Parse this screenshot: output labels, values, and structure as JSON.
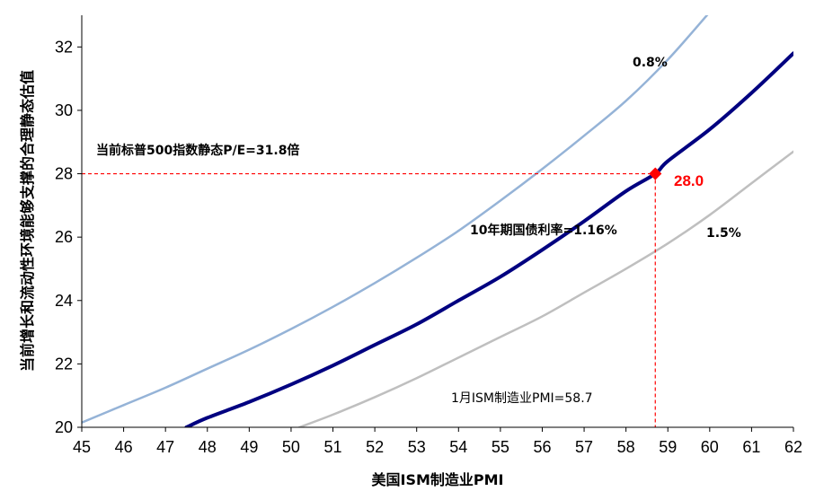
{
  "chart_data": {
    "type": "line",
    "title": "",
    "xlabel": "美国ISM制造业PMI",
    "ylabel": "当前增长和流动性环境能够支撑的合理静态估值",
    "xlim": [
      45,
      62
    ],
    "ylim": [
      20,
      33
    ],
    "xticks": [
      "45",
      "46",
      "47",
      "48",
      "49",
      "50",
      "51",
      "52",
      "53",
      "54",
      "55",
      "56",
      "57",
      "58",
      "59",
      "60",
      "61",
      "62"
    ],
    "yticks": [
      "20",
      "22",
      "24",
      "26",
      "28",
      "30",
      "32"
    ],
    "grid": false,
    "series": [
      {
        "name": "0.8%",
        "color": "#95b3d7",
        "x": [
          45,
          46,
          47,
          48,
          49,
          50,
          51,
          52,
          53,
          54,
          55,
          56,
          57,
          58,
          59,
          60
        ],
        "y": [
          20.15,
          20.7,
          21.25,
          21.85,
          22.45,
          23.1,
          23.8,
          24.55,
          25.35,
          26.2,
          27.15,
          28.15,
          29.2,
          30.3,
          31.6,
          33.1
        ]
      },
      {
        "name": "10年期国债利率=1.16%",
        "color": "#000080",
        "x": [
          47.5,
          48,
          49,
          50,
          51,
          52,
          53,
          54,
          55,
          56,
          57,
          58,
          58.7,
          59,
          60,
          61,
          62
        ],
        "y": [
          20,
          20.3,
          20.8,
          21.35,
          21.95,
          22.6,
          23.25,
          24.0,
          24.75,
          25.6,
          26.5,
          27.45,
          28.0,
          28.4,
          29.4,
          30.55,
          31.8
        ]
      },
      {
        "name": "1.5%",
        "color": "#bfbfbf",
        "x": [
          50.2,
          51,
          52,
          53,
          54,
          55,
          56,
          57,
          58,
          59,
          60,
          61,
          62
        ],
        "y": [
          20,
          20.4,
          20.95,
          21.55,
          22.2,
          22.85,
          23.5,
          24.25,
          25.0,
          25.8,
          26.7,
          27.7,
          28.7
        ]
      }
    ],
    "highlight": {
      "x": 58.7,
      "y": 28.0,
      "label": "28.0",
      "color": "#ff0000"
    },
    "annotations": {
      "pe_text": "当前标普500指数静态P/E=31.8倍",
      "pmi_text": "1月ISM制造业PMI=58.7",
      "label_08": "0.8%",
      "label_116": "10年期国债利率=1.16%",
      "label_15": "1.5%"
    }
  }
}
